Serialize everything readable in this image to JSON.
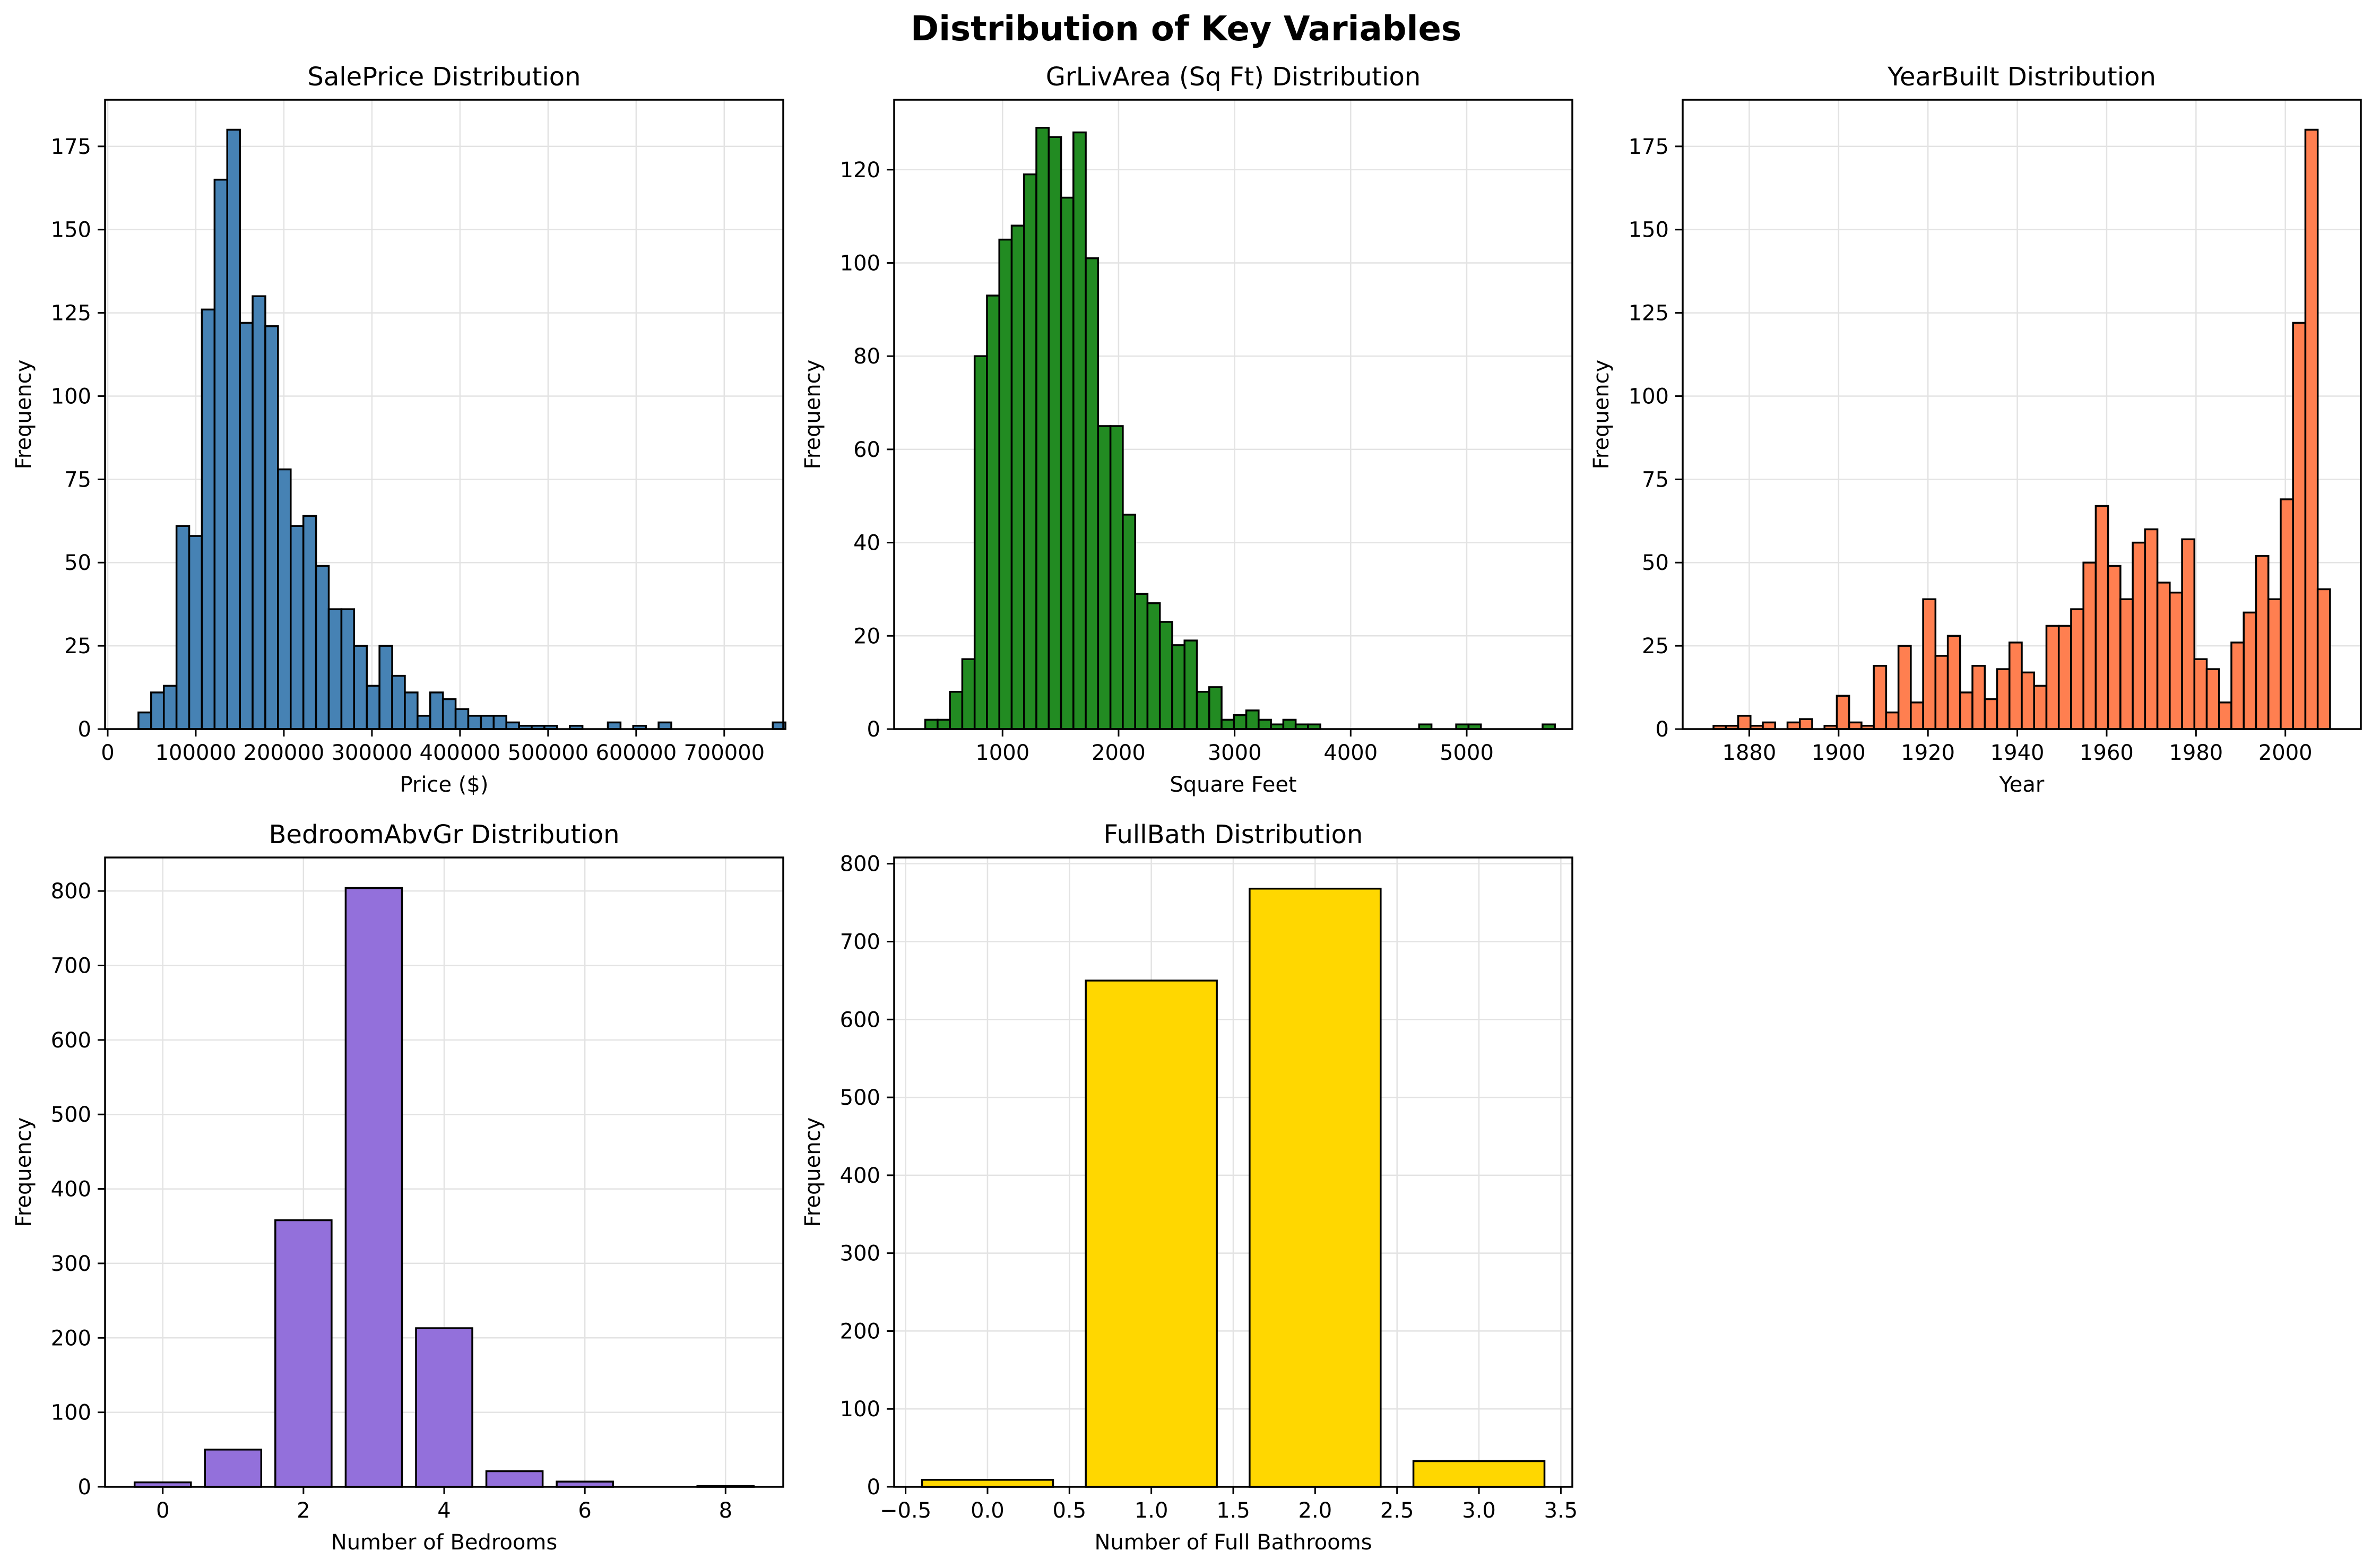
{
  "figure": {
    "title": "Distribution of Key Variables"
  },
  "chart_data": [
    {
      "id": "saleprice",
      "type": "bar",
      "title": "SalePrice Distribution",
      "xlabel": "Price ($)",
      "ylabel": "Frequency",
      "color": "#4682B4",
      "xlim": [
        -3000,
        767000
      ],
      "ylim": [
        0,
        189
      ],
      "xticks": [
        0,
        100000,
        200000,
        300000,
        400000,
        500000,
        600000,
        700000
      ],
      "yticks": [
        0,
        25,
        50,
        75,
        100,
        125,
        150,
        175
      ],
      "bin_start": 34900,
      "bin_width": 14404,
      "values": [
        5,
        11,
        13,
        61,
        58,
        126,
        165,
        180,
        122,
        130,
        121,
        78,
        61,
        64,
        49,
        36,
        36,
        25,
        13,
        25,
        16,
        11,
        4,
        11,
        9,
        6,
        4,
        4,
        4,
        2,
        1,
        1,
        1,
        0,
        1,
        0,
        0,
        2,
        0,
        1,
        0,
        2,
        0,
        0,
        0,
        0,
        0,
        0,
        0,
        0,
        2
      ],
      "grid": true
    },
    {
      "id": "grlivarea",
      "type": "bar",
      "title": "GrLivArea (Sq Ft) Distribution",
      "xlabel": "Square Feet",
      "ylabel": "Frequency",
      "color": "#228B22",
      "xlim": [
        66,
        5910
      ],
      "ylim": [
        0,
        135
      ],
      "xticks": [
        1000,
        2000,
        3000,
        4000,
        5000
      ],
      "yticks": [
        0,
        20,
        40,
        60,
        80,
        100,
        120
      ],
      "bin_start": 334,
      "bin_width": 106.4,
      "values": [
        2,
        2,
        8,
        15,
        80,
        93,
        105,
        108,
        119,
        129,
        127,
        114,
        128,
        101,
        65,
        65,
        46,
        29,
        27,
        23,
        18,
        19,
        8,
        9,
        2,
        3,
        4,
        2,
        1,
        2,
        1,
        1,
        0,
        0,
        0,
        0,
        0,
        0,
        0,
        0,
        1,
        0,
        0,
        1,
        1,
        0,
        0,
        0,
        0,
        0,
        1
      ],
      "grid": true
    },
    {
      "id": "yearbuilt",
      "type": "bar",
      "title": "YearBuilt Distribution",
      "xlabel": "Year",
      "ylabel": "Frequency",
      "color": "#FF7F50",
      "xlim": [
        1865.1,
        2016.9
      ],
      "ylim": [
        0,
        189
      ],
      "xticks": [
        1880,
        1900,
        1920,
        1940,
        1960,
        1980,
        2000
      ],
      "yticks": [
        0,
        25,
        50,
        75,
        100,
        125,
        150,
        175
      ],
      "bin_start": 1872,
      "bin_width": 2.76,
      "values": [
        1,
        1,
        4,
        1,
        2,
        0,
        2,
        3,
        0,
        1,
        10,
        2,
        1,
        19,
        5,
        25,
        8,
        39,
        22,
        28,
        11,
        19,
        9,
        18,
        26,
        17,
        13,
        31,
        31,
        36,
        50,
        67,
        49,
        39,
        56,
        60,
        44,
        41,
        57,
        21,
        18,
        8,
        26,
        35,
        52,
        39,
        69,
        122,
        180,
        42
      ],
      "grid": true
    },
    {
      "id": "bedroom",
      "type": "bar",
      "title": "BedroomAbvGr Distribution",
      "xlabel": "Number of Bedrooms",
      "ylabel": "Frequency",
      "color": "#9370DB",
      "xlim": [
        -0.82,
        8.82
      ],
      "ylim": [
        0,
        845
      ],
      "xticks": [
        0,
        2,
        4,
        6,
        8
      ],
      "yticks": [
        0,
        100,
        200,
        300,
        400,
        500,
        600,
        700,
        800
      ],
      "bar_width": 0.8,
      "categories": [
        0,
        1,
        2,
        3,
        4,
        5,
        6,
        8
      ],
      "values": [
        6,
        50,
        358,
        804,
        213,
        21,
        7,
        1
      ],
      "grid": true
    },
    {
      "id": "fullbath",
      "type": "bar",
      "title": "FullBath Distribution",
      "xlabel": "Number of Full Bathrooms",
      "ylabel": "Frequency",
      "color": "#FFD700",
      "xlim": [
        -0.57,
        3.57
      ],
      "ylim": [
        0,
        808
      ],
      "xticks": [
        -0.5,
        0.0,
        0.5,
        1.0,
        1.5,
        2.0,
        2.5,
        3.0,
        3.5
      ],
      "xtick_labels": [
        "−0.5",
        "0.0",
        "0.5",
        "1.0",
        "1.5",
        "2.0",
        "2.5",
        "3.0",
        "3.5"
      ],
      "yticks": [
        0,
        100,
        200,
        300,
        400,
        500,
        600,
        700,
        800
      ],
      "bar_width": 0.8,
      "categories": [
        0,
        1,
        2,
        3
      ],
      "values": [
        9,
        650,
        768,
        33
      ],
      "grid": true
    }
  ]
}
